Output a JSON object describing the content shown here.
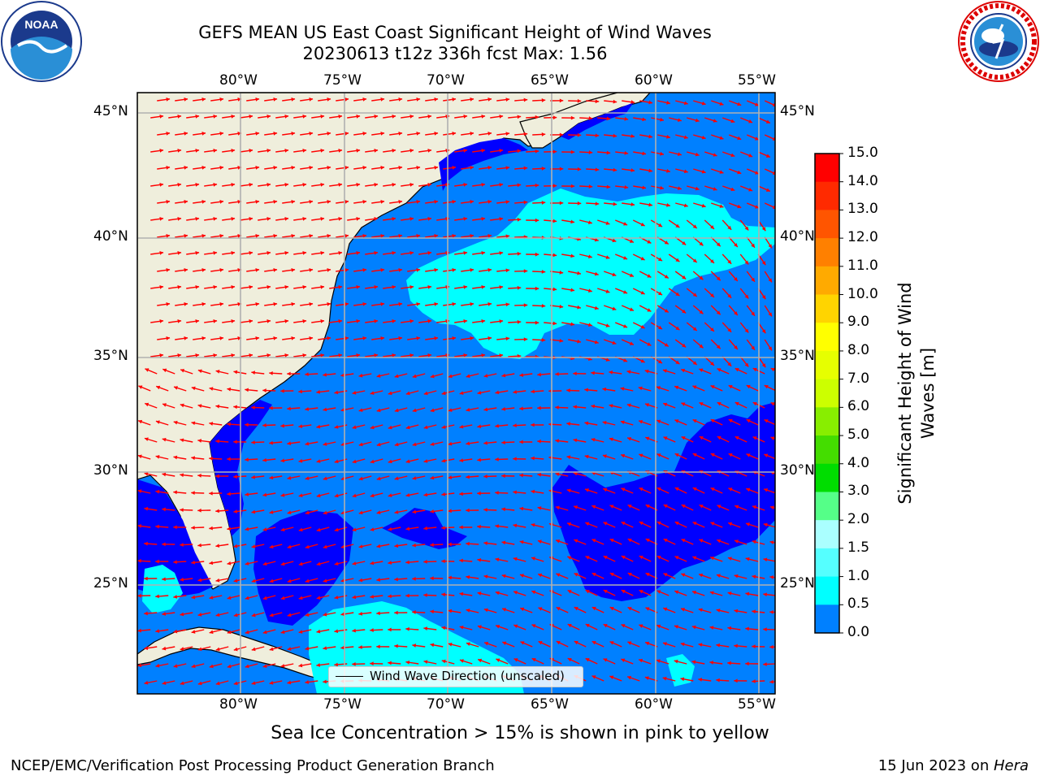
{
  "title_line1": "GEFS MEAN US East Coast Significant Height of Wind Waves",
  "title_line2": "20230613 t12z 336h fcst   Max: 1.56",
  "lon_ticks": [
    "80°W",
    "75°W",
    "70°W",
    "65°W",
    "60°W",
    "55°W"
  ],
  "lat_ticks": [
    "45°N",
    "40°N",
    "35°N",
    "30°N",
    "25°N"
  ],
  "colorbar": {
    "title": "Significant Height of Wind Waves [m]",
    "labels": [
      "15.0",
      "14.0",
      "13.0",
      "12.0",
      "11.0",
      "10.0",
      "9.0",
      "8.0",
      "7.0",
      "6.0",
      "5.0",
      "4.0",
      "3.0",
      "2.0",
      "1.5",
      "1.0",
      "0.5",
      "0.0"
    ],
    "colors": [
      "#ff0000",
      "#ff2a00",
      "#ff5500",
      "#ff8000",
      "#ffaa00",
      "#ffd400",
      "#ffff00",
      "#e6ff00",
      "#ccff00",
      "#88ee00",
      "#44dd00",
      "#00dd00",
      "#55ff88",
      "#aaffff",
      "#55ffff",
      "#00ffff",
      "#0080ff",
      "#0000ff"
    ]
  },
  "legend_label": "Wind Wave Direction (unscaled)",
  "ice_note": "Sea Ice Concentration > 15% is shown in pink to yellow",
  "footer_left": "NCEP/EMC/Verification Post Processing Product Generation Branch",
  "footer_date": "15 Jun 2023 on ",
  "footer_host": "Hera",
  "map_colors": {
    "land": "#efeedc",
    "ocean_base": "#0080ff",
    "low": "#0000ff",
    "high": "#00ffff",
    "arrow": "#ff0000"
  }
}
